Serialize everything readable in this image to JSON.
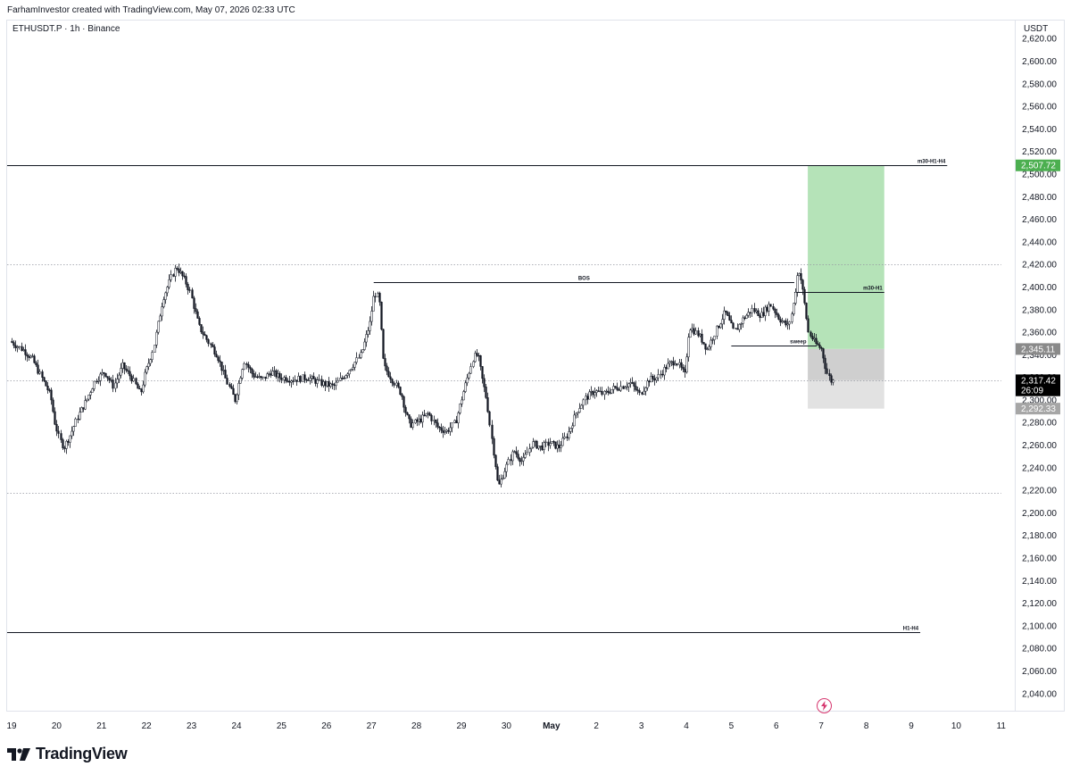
{
  "header": {
    "credit": "FarhamInvestor created with TradingView.com, May 07, 2026 02:33 UTC"
  },
  "symbol": {
    "label": "ETHUSDT.P · 1h · Binance"
  },
  "price_axis": {
    "currency": "USDT"
  },
  "footer": {
    "brand": "TradingView"
  },
  "icons": {
    "logo": "tradingview-logo-icon",
    "replay": "lightning-bolt-icon"
  },
  "colors": {
    "profit_zone": "#b5e3b8",
    "stop_zone": "#cfcfcf",
    "stop_zone_light": "#e2e2e2",
    "target_tag": "#4caf50",
    "candle": "#131722",
    "current_price_tag": "#000000",
    "entry_tag": "#8a8a8a",
    "stop_tag": "#a6a6a6"
  },
  "chart_data": {
    "type": "candlestick",
    "symbol": "ETHUSDT.P",
    "timeframe": "1h",
    "exchange": "Binance",
    "currency": "USDT",
    "ylim": [
      2024,
      2636
    ],
    "y_ticks": [
      2620,
      2600,
      2580,
      2560,
      2540,
      2520,
      2500,
      2480,
      2460,
      2440,
      2420,
      2400,
      2380,
      2360,
      2340,
      2320,
      2300,
      2280,
      2260,
      2240,
      2220,
      2200,
      2180,
      2160,
      2140,
      2120,
      2100,
      2080,
      2060,
      2040
    ],
    "x_labels": [
      "19",
      "20",
      "21",
      "22",
      "23",
      "24",
      "25",
      "26",
      "27",
      "28",
      "29",
      "30",
      "May",
      "2",
      "3",
      "4",
      "5",
      "6",
      "7",
      "8",
      "9",
      "10",
      "11"
    ],
    "x_range_days": [
      0,
      22
    ],
    "grid": false,
    "levels": [
      {
        "label": "m30-H1-H4",
        "price": 2507.72,
        "style": "solid",
        "from_day": -0.3,
        "to_day": 20.8
      },
      {
        "label": "",
        "price": 2420,
        "style": "dotted",
        "from_day": -0.3,
        "to_day": 22
      },
      {
        "label": "BOS",
        "price": 2404,
        "style": "solid",
        "from_day": 8.05,
        "to_day": 17.4
      },
      {
        "label": "m30-H1",
        "price": 2396,
        "style": "solid",
        "from_day": 17.4,
        "to_day": 19.4
      },
      {
        "label": "sweep",
        "price": 2348,
        "style": "solid",
        "from_day": 16.0,
        "to_day": 17.9
      },
      {
        "label": "",
        "price": 2317.42,
        "style": "dotted",
        "from_day": -0.3,
        "to_day": 22
      },
      {
        "label": "",
        "price": 2218,
        "style": "dotted",
        "from_day": -0.3,
        "to_day": 22
      },
      {
        "label": "H1-H4",
        "price": 2094,
        "style": "solid",
        "from_day": -0.3,
        "to_day": 20.2
      }
    ],
    "position": {
      "type": "long",
      "entry": 2345.11,
      "target": 2507.72,
      "stop": 2292.33,
      "current": 2317.42,
      "from_day": 17.7,
      "to_day": 19.4
    },
    "price_tags": [
      {
        "value": "2,507.72",
        "price": 2507.72,
        "role": "target"
      },
      {
        "value": "2,345.11",
        "price": 2345.11,
        "role": "entry"
      },
      {
        "value": "2,317.42",
        "price": 2317.42,
        "role": "current"
      },
      {
        "value": "26:09",
        "price": 2308.5,
        "role": "countdown"
      },
      {
        "value": "2,292.33",
        "price": 2292.33,
        "role": "stop"
      }
    ],
    "path_points": [
      [
        0,
        2352
      ],
      [
        0.3,
        2344
      ],
      [
        0.5,
        2336
      ],
      [
        0.7,
        2320
      ],
      [
        0.9,
        2304
      ],
      [
        1.0,
        2280
      ],
      [
        1.1,
        2265
      ],
      [
        1.2,
        2258
      ],
      [
        1.35,
        2270
      ],
      [
        1.5,
        2285
      ],
      [
        1.7,
        2300
      ],
      [
        1.9,
        2318
      ],
      [
        2.1,
        2325
      ],
      [
        2.3,
        2312
      ],
      [
        2.5,
        2330
      ],
      [
        2.7,
        2320
      ],
      [
        2.9,
        2305
      ],
      [
        3.0,
        2322
      ],
      [
        3.2,
        2348
      ],
      [
        3.4,
        2390
      ],
      [
        3.6,
        2410
      ],
      [
        3.7,
        2418
      ],
      [
        3.9,
        2405
      ],
      [
        4.0,
        2396
      ],
      [
        4.2,
        2365
      ],
      [
        4.4,
        2352
      ],
      [
        4.6,
        2340
      ],
      [
        4.8,
        2318
      ],
      [
        5.0,
        2300
      ],
      [
        5.2,
        2335
      ],
      [
        5.4,
        2322
      ],
      [
        5.6,
        2318
      ],
      [
        5.8,
        2325
      ],
      [
        6.0,
        2320
      ],
      [
        6.3,
        2318
      ],
      [
        6.6,
        2320
      ],
      [
        6.9,
        2315
      ],
      [
        7.2,
        2312
      ],
      [
        7.5,
        2325
      ],
      [
        7.8,
        2340
      ],
      [
        8.0,
        2368
      ],
      [
        8.1,
        2395
      ],
      [
        8.2,
        2390
      ],
      [
        8.3,
        2330
      ],
      [
        8.5,
        2318
      ],
      [
        8.7,
        2305
      ],
      [
        8.8,
        2288
      ],
      [
        8.9,
        2278
      ],
      [
        9.1,
        2282
      ],
      [
        9.3,
        2288
      ],
      [
        9.5,
        2276
      ],
      [
        9.7,
        2272
      ],
      [
        9.9,
        2280
      ],
      [
        10.1,
        2310
      ],
      [
        10.3,
        2338
      ],
      [
        10.4,
        2340
      ],
      [
        10.5,
        2318
      ],
      [
        10.6,
        2300
      ],
      [
        10.7,
        2268
      ],
      [
        10.8,
        2240
      ],
      [
        10.85,
        2222
      ],
      [
        11.0,
        2238
      ],
      [
        11.2,
        2255
      ],
      [
        11.4,
        2245
      ],
      [
        11.6,
        2262
      ],
      [
        11.8,
        2258
      ],
      [
        12.0,
        2262
      ],
      [
        12.2,
        2258
      ],
      [
        12.4,
        2270
      ],
      [
        12.6,
        2290
      ],
      [
        12.8,
        2302
      ],
      [
        13.0,
        2308
      ],
      [
        13.2,
        2305
      ],
      [
        13.4,
        2310
      ],
      [
        13.6,
        2312
      ],
      [
        13.8,
        2315
      ],
      [
        14.0,
        2305
      ],
      [
        14.2,
        2318
      ],
      [
        14.4,
        2320
      ],
      [
        14.6,
        2330
      ],
      [
        14.8,
        2335
      ],
      [
        15.0,
        2322
      ],
      [
        15.1,
        2365
      ],
      [
        15.3,
        2358
      ],
      [
        15.5,
        2345
      ],
      [
        15.7,
        2362
      ],
      [
        15.9,
        2378
      ],
      [
        16.1,
        2360
      ],
      [
        16.3,
        2372
      ],
      [
        16.5,
        2380
      ],
      [
        16.7,
        2375
      ],
      [
        16.9,
        2385
      ],
      [
        17.1,
        2372
      ],
      [
        17.3,
        2365
      ],
      [
        17.4,
        2380
      ],
      [
        17.5,
        2410
      ],
      [
        17.55,
        2415
      ],
      [
        17.65,
        2390
      ],
      [
        17.75,
        2360
      ],
      [
        17.9,
        2350
      ],
      [
        18.05,
        2345
      ],
      [
        18.15,
        2325
      ],
      [
        18.25,
        2317
      ]
    ]
  }
}
